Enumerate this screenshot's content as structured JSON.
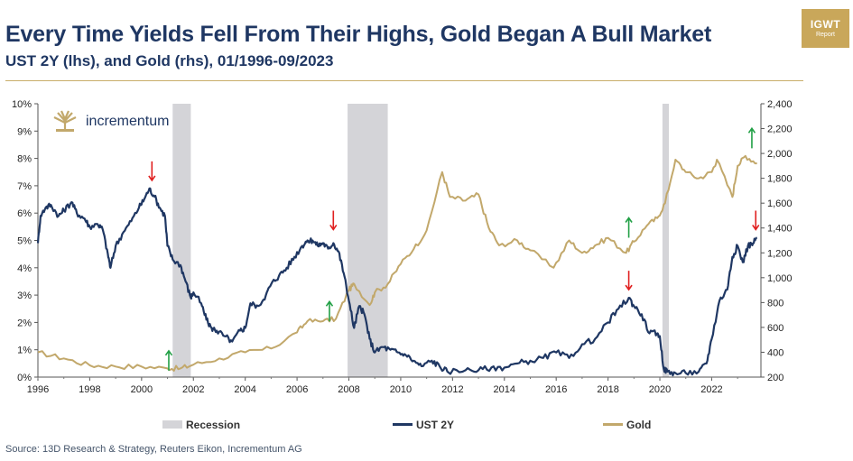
{
  "header": {
    "title": "Every Time Yields Fell From Their Highs, Gold Began A Bull Market",
    "subtitle": "UST 2Y (lhs), and Gold (rhs), 01/1996-09/2023"
  },
  "badge": {
    "line1": "IGWT",
    "line2": "Report"
  },
  "logo": {
    "text": "incrementum",
    "icon": "tree-icon"
  },
  "footer": {
    "source": "Source: 13D Research & Strategy, Reuters Eikon, Incrementum AG"
  },
  "colors": {
    "yield": "#1f3763",
    "gold": "#c2a86b",
    "recession": "#d4d4d8",
    "up": "#22a046",
    "down": "#e02020"
  },
  "chart_data": {
    "type": "line",
    "title": "Every Time Yields Fell From Their Highs, Gold Began A Bull Market",
    "x_range": [
      1996,
      2023.9
    ],
    "x_ticks": [
      "1996",
      "1998",
      "2000",
      "2002",
      "2004",
      "2006",
      "2008",
      "2010",
      "2012",
      "2014",
      "2016",
      "2018",
      "2020",
      "2022"
    ],
    "y_left": {
      "label": "UST 2Y",
      "range": [
        0,
        10
      ],
      "ticks": [
        "0%",
        "1%",
        "2%",
        "3%",
        "4%",
        "5%",
        "6%",
        "7%",
        "8%",
        "9%",
        "10%"
      ]
    },
    "y_right": {
      "label": "Gold",
      "range": [
        200,
        2400
      ],
      "ticks": [
        "200",
        "400",
        "600",
        "800",
        "1,000",
        "1,200",
        "1,400",
        "1,600",
        "1,800",
        "2,000",
        "2,200",
        "2,400"
      ]
    },
    "legend": [
      "Recession",
      "UST 2Y",
      "Gold"
    ],
    "recessions": [
      [
        2001.2,
        2001.9
      ],
      [
        2007.95,
        2009.5
      ],
      [
        2020.1,
        2020.35
      ]
    ],
    "series": [
      {
        "name": "UST 2Y",
        "axis": "left",
        "x": [
          1996.0,
          1996.1,
          1996.3,
          1996.5,
          1996.8,
          1997.0,
          1997.3,
          1997.5,
          1997.8,
          1998.0,
          1998.3,
          1998.5,
          1998.7,
          1998.8,
          1999.0,
          1999.3,
          1999.6,
          1999.9,
          2000.1,
          2000.3,
          2000.5,
          2000.7,
          2000.9,
          2001.0,
          2001.2,
          2001.5,
          2001.7,
          2001.9,
          2002.0,
          2002.3,
          2002.5,
          2002.7,
          2002.9,
          2003.2,
          2003.5,
          2003.8,
          2004.0,
          2004.2,
          2004.5,
          2004.8,
          2005.0,
          2005.3,
          2005.6,
          2005.9,
          2006.2,
          2006.4,
          2006.6,
          2006.8,
          2007.0,
          2007.2,
          2007.4,
          2007.6,
          2007.8,
          2008.0,
          2008.2,
          2008.4,
          2008.6,
          2008.8,
          2009.0,
          2009.3,
          2009.6,
          2009.9,
          2010.2,
          2010.5,
          2010.8,
          2011.2,
          2011.5,
          2011.8,
          2012.5,
          2013.0,
          2013.5,
          2014.0,
          2014.5,
          2015.0,
          2015.5,
          2016.0,
          2016.5,
          2017.0,
          2017.5,
          2018.0,
          2018.4,
          2018.8,
          2019.0,
          2019.3,
          2019.6,
          2019.9,
          2020.0,
          2020.15,
          2020.3,
          2020.6,
          2021.0,
          2021.5,
          2021.8,
          2022.0,
          2022.3,
          2022.6,
          2022.8,
          2023.0,
          2023.2,
          2023.4,
          2023.6,
          2023.75
        ],
        "y": [
          4.9,
          5.9,
          6.2,
          6.3,
          5.9,
          6.1,
          6.4,
          6.0,
          5.8,
          5.5,
          5.6,
          5.4,
          4.5,
          4.0,
          4.8,
          5.3,
          5.7,
          6.2,
          6.5,
          6.9,
          6.6,
          6.2,
          5.9,
          4.8,
          4.3,
          4.1,
          3.5,
          2.9,
          3.1,
          2.7,
          2.1,
          1.8,
          1.7,
          1.5,
          1.3,
          1.7,
          1.8,
          2.7,
          2.6,
          3.0,
          3.4,
          3.7,
          4.0,
          4.4,
          4.8,
          5.0,
          5.0,
          4.8,
          4.9,
          4.7,
          4.9,
          4.6,
          3.8,
          2.8,
          1.8,
          2.6,
          2.3,
          1.4,
          0.9,
          1.1,
          1.0,
          0.9,
          0.8,
          0.6,
          0.4,
          0.6,
          0.4,
          0.2,
          0.25,
          0.25,
          0.35,
          0.35,
          0.5,
          0.6,
          0.7,
          0.9,
          0.7,
          1.2,
          1.4,
          2.0,
          2.5,
          2.9,
          2.6,
          2.3,
          1.6,
          1.6,
          1.5,
          0.3,
          0.2,
          0.15,
          0.15,
          0.2,
          0.5,
          1.4,
          2.8,
          3.2,
          4.4,
          4.8,
          4.2,
          4.8,
          4.9,
          5.1
        ]
      },
      {
        "name": "Gold",
        "axis": "right",
        "x": [
          1996.0,
          1997.0,
          1998.0,
          1999.0,
          2000.0,
          2001.0,
          2001.5,
          2002.0,
          2003.0,
          2004.0,
          2005.0,
          2006.0,
          2006.4,
          2007.0,
          2007.5,
          2008.0,
          2008.2,
          2008.8,
          2009.0,
          2009.5,
          2010.0,
          2010.5,
          2011.0,
          2011.6,
          2011.9,
          2012.5,
          2013.0,
          2013.4,
          2013.8,
          2014.5,
          2015.0,
          2015.9,
          2016.5,
          2017.0,
          2017.5,
          2018.0,
          2018.7,
          2019.0,
          2019.5,
          2019.9,
          2020.2,
          2020.6,
          2021.0,
          2021.5,
          2022.0,
          2022.2,
          2022.8,
          2023.0,
          2023.3,
          2023.75
        ],
        "y": [
          400,
          350,
          295,
          285,
          285,
          270,
          270,
          300,
          350,
          400,
          430,
          560,
          650,
          650,
          670,
          900,
          950,
          780,
          880,
          950,
          1110,
          1230,
          1380,
          1850,
          1650,
          1620,
          1670,
          1400,
          1260,
          1300,
          1220,
          1080,
          1300,
          1200,
          1260,
          1320,
          1200,
          1290,
          1420,
          1480,
          1600,
          1950,
          1850,
          1800,
          1850,
          1950,
          1650,
          1900,
          1980,
          1920
        ]
      }
    ],
    "annotations": [
      {
        "x": 2000.4,
        "y": 6.9,
        "axis": "left",
        "direction": "down"
      },
      {
        "x": 2007.4,
        "y": 5.1,
        "axis": "left",
        "direction": "down"
      },
      {
        "x": 2018.8,
        "y": 2.9,
        "axis": "left",
        "direction": "down"
      },
      {
        "x": 2023.7,
        "y": 5.1,
        "axis": "left",
        "direction": "down"
      },
      {
        "x": 2001.05,
        "y": 0.5,
        "axis": "left",
        "direction": "up"
      },
      {
        "x": 2007.25,
        "y": 2.3,
        "axis": "left",
        "direction": "up"
      },
      {
        "x": 2018.8,
        "y": 1380,
        "axis": "right",
        "direction": "up"
      },
      {
        "x": 2023.55,
        "y": 2100,
        "axis": "right",
        "direction": "up"
      }
    ]
  }
}
